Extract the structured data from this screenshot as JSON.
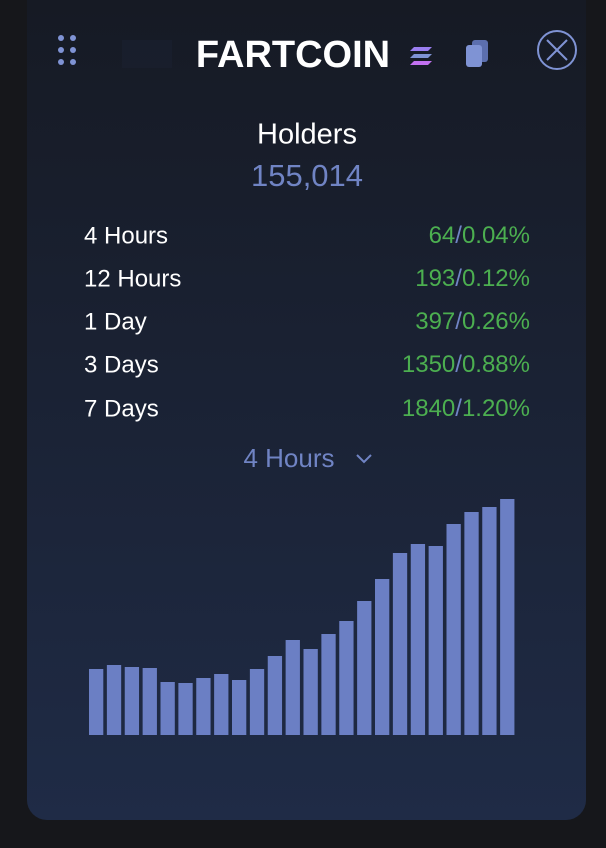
{
  "header": {
    "title": "FARTCOIN"
  },
  "stats": {
    "label": "Holders",
    "value": "155,014",
    "separator": "/",
    "rows": [
      {
        "period": "4 Hours",
        "count": "64",
        "percent": "0.04%"
      },
      {
        "period": "12 Hours",
        "count": "193",
        "percent": "0.12%"
      },
      {
        "period": "1 Day",
        "count": "397",
        "percent": "0.26%"
      },
      {
        "period": "3 Days",
        "count": "1350",
        "percent": "0.88%"
      },
      {
        "period": "7 Days",
        "count": "1840",
        "percent": "1.20%"
      }
    ]
  },
  "dropdown": {
    "selected": "4 Hours"
  },
  "chart_data": {
    "type": "bar",
    "color": "#6b7fc4",
    "values": [
      66,
      70,
      68,
      67,
      53,
      52,
      57,
      61,
      55,
      66,
      79,
      95,
      86,
      101,
      114,
      134,
      156,
      182,
      191,
      189,
      211,
      223,
      228,
      236
    ]
  }
}
